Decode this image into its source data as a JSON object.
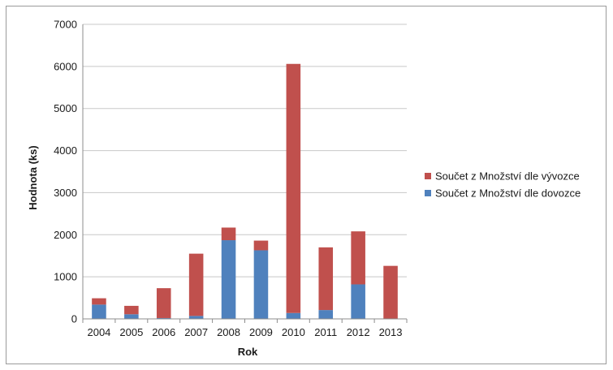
{
  "chart_data": {
    "type": "bar",
    "stacked": true,
    "categories": [
      "2004",
      "2005",
      "2006",
      "2007",
      "2008",
      "2009",
      "2010",
      "2011",
      "2012",
      "2013"
    ],
    "series": [
      {
        "name": "Součet z Množství dle dovozce",
        "color": "#4f81bd",
        "values": [
          340,
          110,
          20,
          70,
          1870,
          1630,
          140,
          210,
          820,
          0
        ]
      },
      {
        "name": "Součet z Množství dle vývozce",
        "color": "#c0504d",
        "values": [
          150,
          200,
          710,
          1480,
          300,
          230,
          5920,
          1490,
          1260,
          1260
        ]
      }
    ],
    "xlabel": "Rok",
    "ylabel": "Hodnota (ks)",
    "ylim": [
      0,
      7000
    ],
    "yticks": [
      0,
      1000,
      2000,
      3000,
      4000,
      5000,
      6000,
      7000
    ],
    "grid": true,
    "legend_position": "right"
  }
}
